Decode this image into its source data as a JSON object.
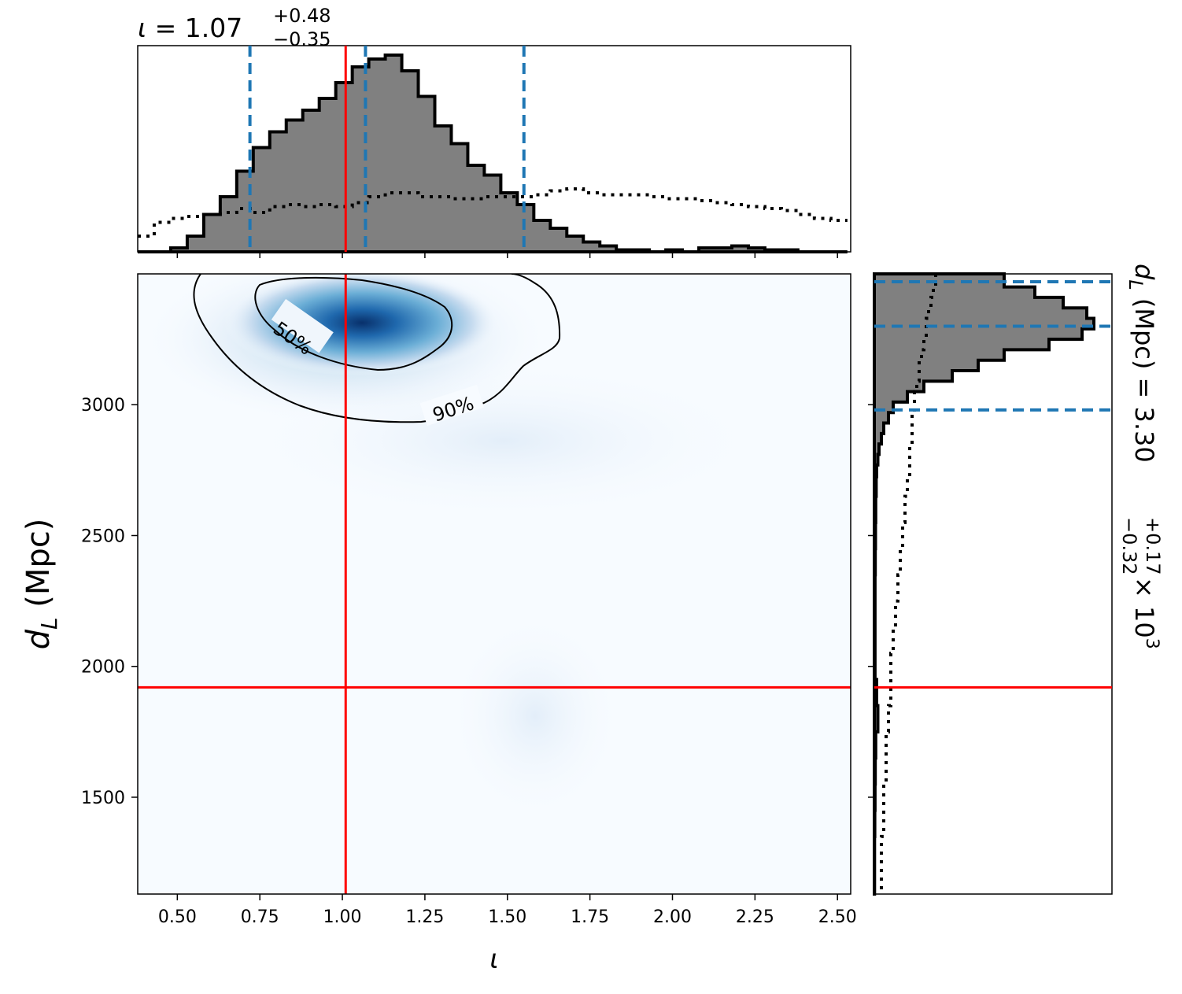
{
  "chart_data": {
    "type": "corner",
    "parameters": [
      {
        "name": "iota",
        "label": "ι",
        "median": 1.07,
        "plus": "+0.48",
        "minus": "−0.35",
        "quantiles": [
          0.72,
          1.07,
          1.55
        ],
        "injected": 1.01,
        "axis_range": [
          0.38,
          2.54
        ]
      },
      {
        "name": "d_L",
        "label_main": "d",
        "label_sub": "L",
        "unit": " (Mpc)",
        "median_text": "3.30",
        "plus": "+0.17",
        "minus": "−0.32",
        "scale_text": "× 10",
        "scale_exp": "3",
        "quantiles": [
          2980,
          3300,
          3470
        ],
        "injected": 1920,
        "axis_range": [
          1130,
          3500
        ]
      }
    ],
    "title_top": {
      "prefix": "ι",
      "equals": " = 1.07"
    },
    "x_ticks": [
      "0.50",
      "0.75",
      "1.00",
      "1.25",
      "1.50",
      "1.75",
      "2.00",
      "2.25",
      "2.50"
    ],
    "x_tick_values": [
      0.5,
      0.75,
      1.0,
      1.25,
      1.5,
      1.75,
      2.0,
      2.25,
      2.5
    ],
    "y_ticks": [
      "3000",
      "2500",
      "2000",
      "1500"
    ],
    "y_tick_values": [
      3000,
      2500,
      2000,
      1500
    ],
    "contour_labels": [
      "50%",
      "90%"
    ],
    "hist_iota": {
      "bin_start": 0.38,
      "bin_width": 0.05,
      "posterior": [
        0.0,
        0.0,
        0.02,
        0.08,
        0.19,
        0.28,
        0.41,
        0.53,
        0.61,
        0.67,
        0.72,
        0.78,
        0.86,
        0.94,
        0.98,
        1.0,
        0.92,
        0.79,
        0.64,
        0.55,
        0.44,
        0.39,
        0.3,
        0.24,
        0.16,
        0.12,
        0.08,
        0.05,
        0.03,
        0.01,
        0.01,
        0.0,
        0.01,
        0.0,
        0.02,
        0.02,
        0.03,
        0.02,
        0.01,
        0.01,
        0.0,
        0.0,
        0.0
      ],
      "prior": [
        0.08,
        0.15,
        0.17,
        0.18,
        0.19,
        0.2,
        0.22,
        0.2,
        0.23,
        0.24,
        0.23,
        0.24,
        0.23,
        0.25,
        0.28,
        0.3,
        0.3,
        0.28,
        0.28,
        0.27,
        0.27,
        0.28,
        0.28,
        0.28,
        0.29,
        0.31,
        0.32,
        0.3,
        0.29,
        0.29,
        0.29,
        0.28,
        0.27,
        0.27,
        0.26,
        0.25,
        0.24,
        0.23,
        0.22,
        0.21,
        0.19,
        0.17,
        0.16
      ]
    },
    "hist_dL": {
      "bins": [
        3470,
        3430,
        3390,
        3350,
        3310,
        3270,
        3230,
        3190,
        3150,
        3110,
        3070,
        3030,
        2990,
        2950,
        2910,
        2870,
        2830,
        2790,
        2750,
        2700,
        2600,
        2500,
        2400,
        2300,
        2200,
        2100,
        2000,
        1900,
        1800,
        1700,
        1600,
        1500,
        1400,
        1300,
        1200
      ],
      "posterior": [
        0.55,
        0.68,
        0.8,
        0.9,
        0.93,
        0.88,
        0.74,
        0.55,
        0.44,
        0.33,
        0.21,
        0.14,
        0.08,
        0.06,
        0.04,
        0.03,
        0.02,
        0.015,
        0.01,
        0.008,
        0.006,
        0.005,
        0.004,
        0.003,
        0.003,
        0.003,
        0.003,
        0.01,
        0.015,
        0.006,
        0.004,
        0.003,
        0.002,
        0.001,
        0.001
      ],
      "prior": [
        0.26,
        0.25,
        0.24,
        0.23,
        0.22,
        0.22,
        0.21,
        0.2,
        0.19,
        0.19,
        0.18,
        0.17,
        0.17,
        0.16,
        0.16,
        0.16,
        0.15,
        0.15,
        0.15,
        0.14,
        0.13,
        0.12,
        0.11,
        0.1,
        0.09,
        0.08,
        0.07,
        0.07,
        0.06,
        0.05,
        0.05,
        0.04,
        0.04,
        0.03,
        0.03
      ]
    },
    "colors": {
      "posterior_fill": "#808080",
      "quantile": "#1f77b4",
      "injection": "#ff0000",
      "density": "#08306b",
      "prior": "#000000"
    }
  }
}
